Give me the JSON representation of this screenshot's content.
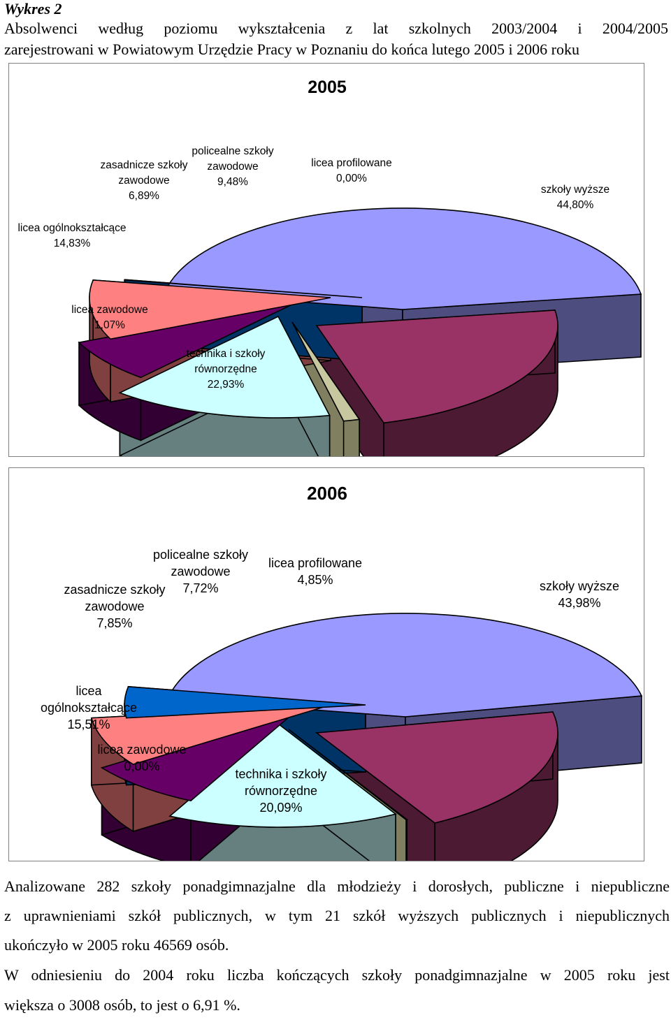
{
  "heading": {
    "label": "Wykres 2",
    "line1": "Absolwenci według poziomu wykształcenia z lat szkolnych 2003/2004 i 2004/2005",
    "line2": "zarejestrowani w Powiatowym Urzędzie Pracy w Poznaniu do końca lutego 2005 i 2006 roku"
  },
  "chart_data": [
    {
      "type": "pie",
      "title": "2005",
      "slices": [
        {
          "key": "szkoly_wyzsze",
          "label_lines": [
            "szkoły wyższe",
            "44,80%"
          ],
          "value": 44.8,
          "top": "#9999ff",
          "side": "#4d4d80"
        },
        {
          "key": "technika",
          "label_lines": [
            "technika i szkoły",
            "równorzędne",
            "22,93%"
          ],
          "value": 22.93,
          "top": "#993366",
          "side": "#4d1a33"
        },
        {
          "key": "licea_zawodowe",
          "label_lines": [
            "licea zawodowe",
            "1,07%"
          ],
          "value": 1.07,
          "top": "#c8c8a0",
          "side": "#808060"
        },
        {
          "key": "licea_ogolnoksztalcace",
          "label_lines": [
            "licea ogólnokształcące",
            "14,83%"
          ],
          "value": 14.83,
          "top": "#ccffff",
          "side": "#668080"
        },
        {
          "key": "zasadnicze",
          "label_lines": [
            "zasadnicze szkoły",
            "zawodowe",
            "6,89%"
          ],
          "value": 6.89,
          "top": "#660066",
          "side": "#330033"
        },
        {
          "key": "policealne",
          "label_lines": [
            "policealne szkoły",
            "zawodowe",
            "9,48%"
          ],
          "value": 9.48,
          "top": "#ff8080",
          "side": "#804040"
        },
        {
          "key": "licea_profilowane",
          "label_lines": [
            "licea profilowane",
            "0,00%"
          ],
          "value": 0.0,
          "top": "#0066cc",
          "side": "#003366"
        }
      ]
    },
    {
      "type": "pie",
      "title": "2006",
      "slices": [
        {
          "key": "szkoly_wyzsze",
          "label_lines": [
            "szkoły wyższe",
            "43,98%"
          ],
          "value": 43.98,
          "top": "#9999ff",
          "side": "#4d4d80"
        },
        {
          "key": "technika",
          "label_lines": [
            "technika i szkoły",
            "równorzędne",
            "20,09%"
          ],
          "value": 20.09,
          "top": "#993366",
          "side": "#4d1a33"
        },
        {
          "key": "licea_zawodowe",
          "label_lines": [
            "licea zawodowe",
            "0,00%"
          ],
          "value": 0.0,
          "top": "#c8c8a0",
          "side": "#808060"
        },
        {
          "key": "licea_ogolnoksztalcace",
          "label_lines": [
            "licea",
            "ogólnokształcące",
            "15,51%"
          ],
          "value": 15.51,
          "top": "#ccffff",
          "side": "#668080"
        },
        {
          "key": "zasadnicze",
          "label_lines": [
            "zasadnicze szkoły",
            "zawodowe",
            "7,85%"
          ],
          "value": 7.85,
          "top": "#660066",
          "side": "#330033"
        },
        {
          "key": "policealne",
          "label_lines": [
            "policealne szkoły",
            "zawodowe",
            "7,72%"
          ],
          "value": 7.72,
          "top": "#ff8080",
          "side": "#804040"
        },
        {
          "key": "licea_profilowane",
          "label_lines": [
            "licea profilowane",
            "4,85%"
          ],
          "value": 4.85,
          "top": "#0066cc",
          "side": "#003366"
        }
      ]
    }
  ],
  "body_text": {
    "p1_line1": "Analizowane 282 szkoły ponadgimnazjalne dla młodzieży i dorosłych, publiczne i niepubliczne",
    "p1_line2": "z uprawnieniami szkół publicznych, w tym 21 szkół wyższych publicznych i niepublicznych",
    "p1_line3": "ukończyło w 2005 roku 46569 osób.",
    "p2_line1": "W odniesieniu do 2004 roku liczba kończących szkoły ponadgimnazjalne w 2005 roku jest",
    "p2_line2": "większa o 3008 osób, to jest o 6,91 %."
  }
}
